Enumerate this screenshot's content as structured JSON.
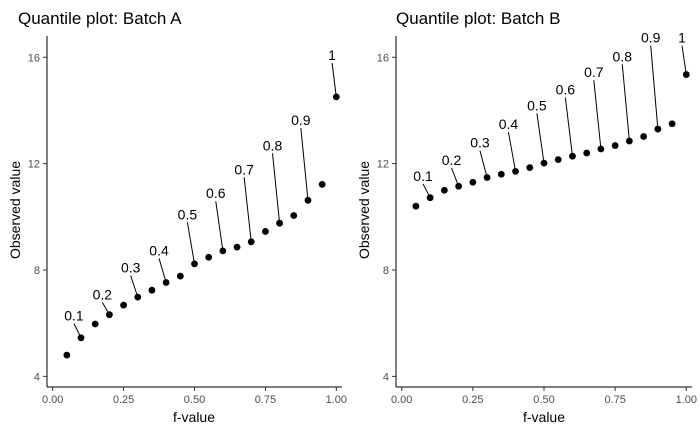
{
  "chart_data": [
    {
      "type": "scatter",
      "title": "Quantile plot: Batch A",
      "xlabel": "f-value",
      "ylabel": "Observed value",
      "xlim": [
        -0.02,
        1.02
      ],
      "ylim": [
        3.6,
        16.8
      ],
      "x_ticks": [
        0.0,
        0.25,
        0.5,
        0.75,
        1.0
      ],
      "x_tick_labels": [
        "0.00",
        "0.25",
        "0.50",
        "0.75",
        "1.00"
      ],
      "y_ticks": [
        4,
        8,
        12,
        16
      ],
      "y_tick_labels": [
        "4",
        "8",
        "12",
        "16"
      ],
      "grid": false,
      "points": {
        "x": [
          0.05,
          0.1,
          0.15,
          0.2,
          0.25,
          0.3,
          0.35,
          0.4,
          0.45,
          0.5,
          0.55,
          0.6,
          0.65,
          0.7,
          0.75,
          0.8,
          0.85,
          0.9,
          0.95,
          1.0
        ],
        "y": [
          4.8,
          5.45,
          5.97,
          6.32,
          6.68,
          6.98,
          7.24,
          7.53,
          7.77,
          8.23,
          8.48,
          8.72,
          8.86,
          9.06,
          9.45,
          9.76,
          10.05,
          10.62,
          11.22,
          14.51
        ]
      },
      "labels": [
        {
          "text": "0.1",
          "x": 0.1,
          "y": 5.45,
          "label_x": 0.075,
          "label_y": 6.1
        },
        {
          "text": "0.2",
          "x": 0.2,
          "y": 6.32,
          "label_x": 0.175,
          "label_y": 6.9
        },
        {
          "text": "0.3",
          "x": 0.3,
          "y": 6.98,
          "label_x": 0.275,
          "label_y": 7.9
        },
        {
          "text": "0.4",
          "x": 0.4,
          "y": 7.53,
          "label_x": 0.375,
          "label_y": 8.55
        },
        {
          "text": "0.5",
          "x": 0.5,
          "y": 8.23,
          "label_x": 0.475,
          "label_y": 9.9
        },
        {
          "text": "0.6",
          "x": 0.6,
          "y": 8.72,
          "label_x": 0.575,
          "label_y": 10.7
        },
        {
          "text": "0.7",
          "x": 0.7,
          "y": 9.06,
          "label_x": 0.675,
          "label_y": 11.6
        },
        {
          "text": "0.8",
          "x": 0.8,
          "y": 9.76,
          "label_x": 0.775,
          "label_y": 12.5
        },
        {
          "text": "0.9",
          "x": 0.9,
          "y": 10.62,
          "label_x": 0.875,
          "label_y": 13.45
        },
        {
          "text": "1",
          "x": 1.0,
          "y": 14.51,
          "label_x": 0.985,
          "label_y": 15.9
        }
      ]
    },
    {
      "type": "scatter",
      "title": "Quantile plot: Batch B",
      "xlabel": "f-value",
      "ylabel": "Observed value",
      "xlim": [
        -0.02,
        1.02
      ],
      "ylim": [
        3.6,
        16.8
      ],
      "x_ticks": [
        0.0,
        0.25,
        0.5,
        0.75,
        1.0
      ],
      "x_tick_labels": [
        "0.00",
        "0.25",
        "0.50",
        "0.75",
        "1.00"
      ],
      "y_ticks": [
        4,
        8,
        12,
        16
      ],
      "y_tick_labels": [
        "4",
        "8",
        "12",
        "16"
      ],
      "grid": false,
      "points": {
        "x": [
          0.05,
          0.1,
          0.15,
          0.2,
          0.25,
          0.3,
          0.35,
          0.4,
          0.45,
          0.5,
          0.55,
          0.6,
          0.65,
          0.7,
          0.75,
          0.8,
          0.85,
          0.9,
          0.95,
          1.0
        ],
        "y": [
          10.4,
          10.72,
          11.0,
          11.15,
          11.3,
          11.48,
          11.6,
          11.71,
          11.85,
          12.02,
          12.15,
          12.28,
          12.4,
          12.55,
          12.68,
          12.85,
          13.02,
          13.3,
          13.5,
          15.35
        ]
      },
      "labels": [
        {
          "text": "0.1",
          "x": 0.1,
          "y": 10.72,
          "label_x": 0.075,
          "label_y": 11.35
        },
        {
          "text": "0.2",
          "x": 0.2,
          "y": 11.15,
          "label_x": 0.175,
          "label_y": 11.95
        },
        {
          "text": "0.3",
          "x": 0.3,
          "y": 11.48,
          "label_x": 0.275,
          "label_y": 12.6
        },
        {
          "text": "0.4",
          "x": 0.4,
          "y": 11.71,
          "label_x": 0.375,
          "label_y": 13.3
        },
        {
          "text": "0.5",
          "x": 0.5,
          "y": 12.02,
          "label_x": 0.475,
          "label_y": 14.0
        },
        {
          "text": "0.6",
          "x": 0.6,
          "y": 12.28,
          "label_x": 0.575,
          "label_y": 14.6
        },
        {
          "text": "0.7",
          "x": 0.7,
          "y": 12.55,
          "label_x": 0.675,
          "label_y": 15.25
        },
        {
          "text": "0.8",
          "x": 0.8,
          "y": 12.85,
          "label_x": 0.775,
          "label_y": 15.85
        },
        {
          "text": "0.9",
          "x": 0.9,
          "y": 13.3,
          "label_x": 0.875,
          "label_y": 16.55
        },
        {
          "text": "1",
          "x": 1.0,
          "y": 15.35,
          "label_x": 0.985,
          "label_y": 16.55
        }
      ]
    }
  ],
  "colors": {
    "point": "#000000",
    "axis": "#000000",
    "tick_label": "#4d4d4d",
    "background": "#ffffff"
  }
}
